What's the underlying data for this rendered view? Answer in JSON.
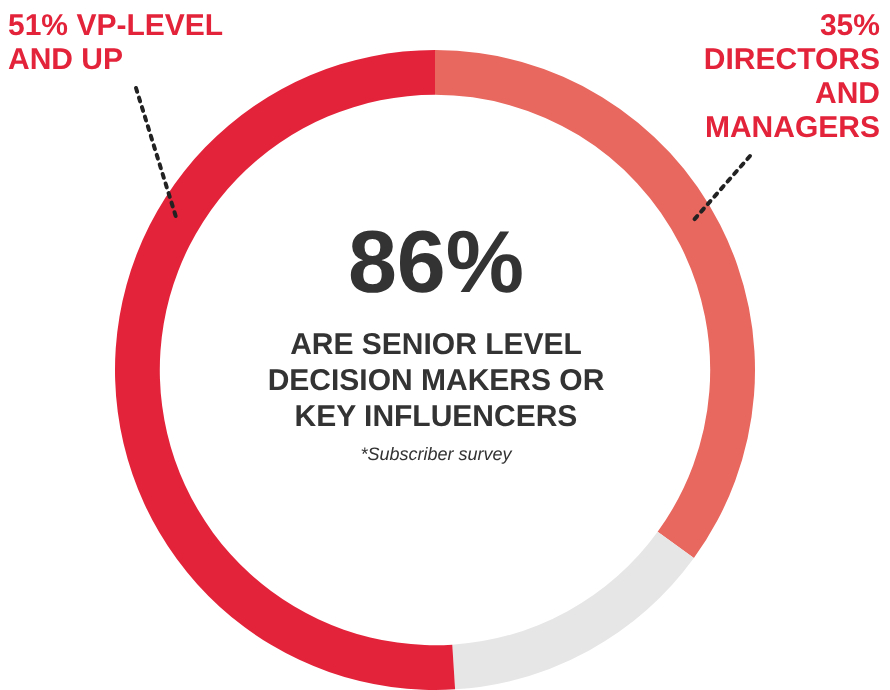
{
  "chart_data": {
    "type": "donut",
    "title": "86%",
    "subtitle": "ARE SENIOR LEVEL DECISION MAKERS OR KEY INFLUENCERS",
    "annotations": [
      "*Subscriber survey"
    ],
    "categories": [
      "DIRECTORS AND MANAGERS",
      null,
      "VP-LEVEL AND UP"
    ],
    "values": [
      35,
      14,
      51
    ],
    "value_labels": [
      "35%",
      null,
      "51%"
    ],
    "colors": [
      "#e8675e",
      "#e6e6e6",
      "#e3233a"
    ],
    "legend": false
  }
}
